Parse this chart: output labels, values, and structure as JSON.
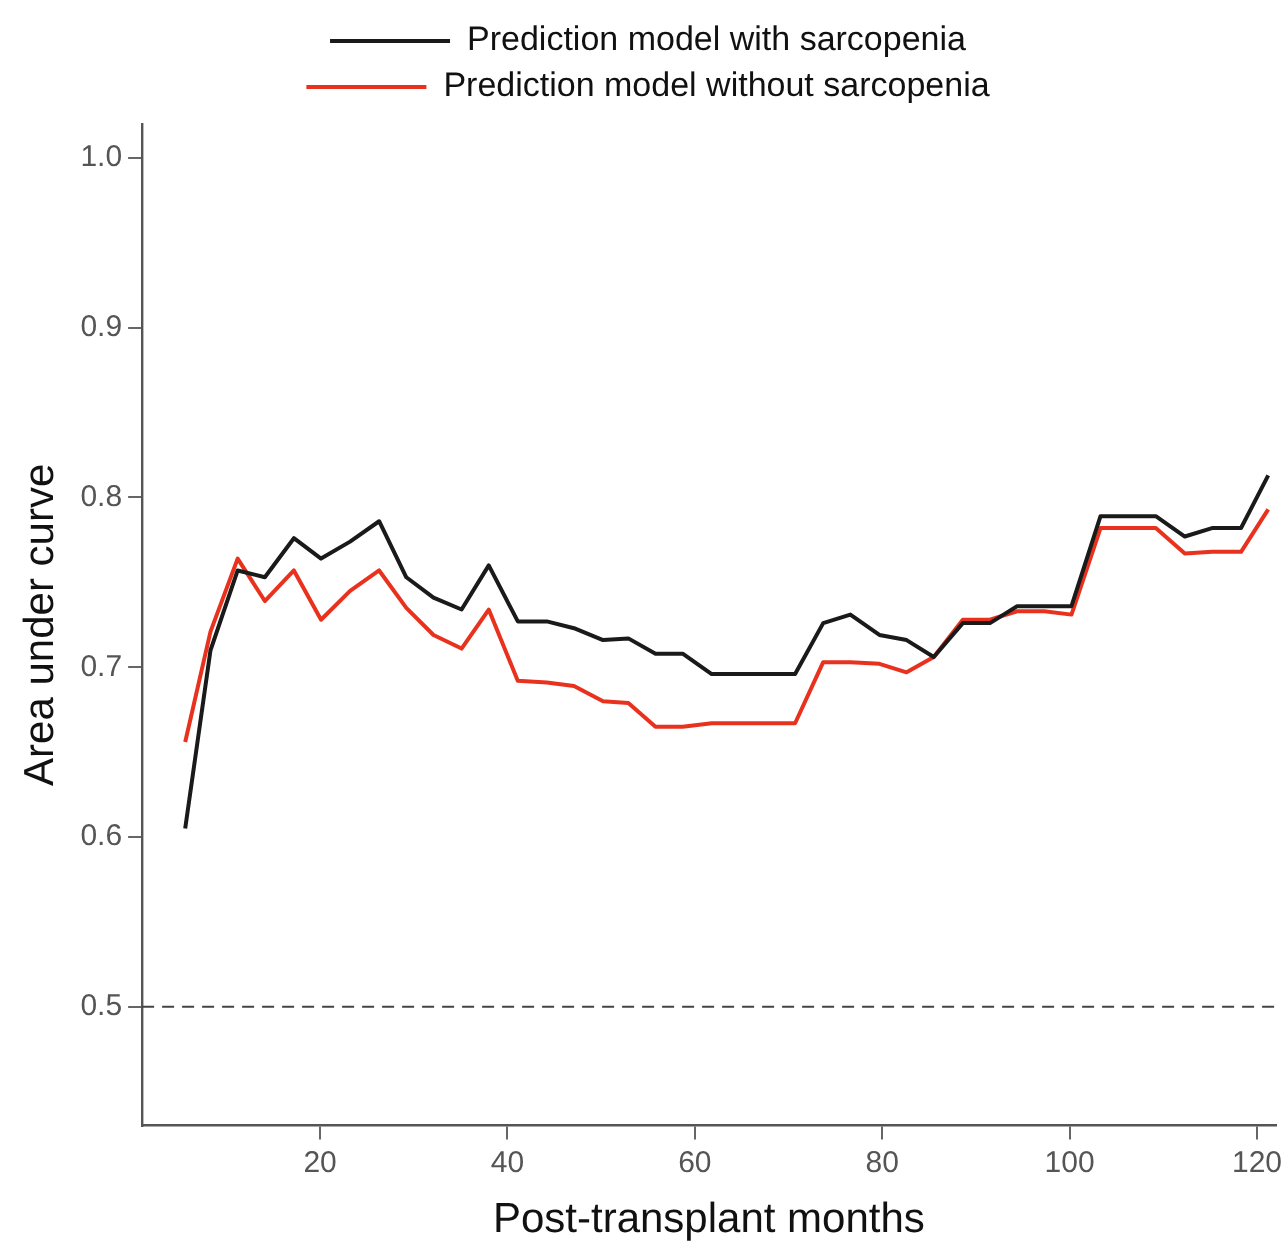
{
  "chart_data": {
    "type": "line",
    "xlabel": "Post-transplant months",
    "ylabel": "Area under curve",
    "x": [
      5.6,
      8.3,
      11.2,
      14.1,
      17.2,
      20.1,
      23.2,
      26.3,
      29.2,
      32.1,
      35.1,
      38.0,
      41.1,
      44.2,
      47.1,
      50.2,
      52.9,
      55.8,
      58.7,
      61.8,
      64.7,
      67.7,
      70.7,
      73.7,
      76.6,
      79.7,
      82.6,
      85.5,
      88.6,
      91.5,
      94.4,
      97.3,
      100.2,
      103.3,
      106.2,
      109.2,
      112.3,
      115.2,
      118.3,
      121.2
    ],
    "series": [
      {
        "name": "Prediction model with sarcopenia",
        "color": "#1a1a1a",
        "values": [
          0.605,
          0.71,
          0.757,
          0.753,
          0.776,
          0.764,
          0.774,
          0.786,
          0.753,
          0.741,
          0.734,
          0.76,
          0.727,
          0.727,
          0.723,
          0.716,
          0.717,
          0.708,
          0.708,
          0.696,
          0.696,
          0.696,
          0.696,
          0.726,
          0.731,
          0.719,
          0.716,
          0.706,
          0.726,
          0.726,
          0.736,
          0.736,
          0.736,
          0.789,
          0.789,
          0.789,
          0.777,
          0.782,
          0.782,
          0.813
        ]
      },
      {
        "name": "Prediction model without sarcopenia",
        "color": "#e8321e",
        "values": [
          0.656,
          0.721,
          0.764,
          0.739,
          0.757,
          0.728,
          0.745,
          0.757,
          0.735,
          0.719,
          0.711,
          0.734,
          0.692,
          0.691,
          0.689,
          0.68,
          0.679,
          0.665,
          0.665,
          0.667,
          0.667,
          0.667,
          0.667,
          0.703,
          0.703,
          0.702,
          0.697,
          0.706,
          0.728,
          0.728,
          0.733,
          0.733,
          0.731,
          0.782,
          0.782,
          0.782,
          0.767,
          0.768,
          0.768,
          0.793
        ]
      }
    ],
    "xlim": [
      1,
      122
    ],
    "xticks": [
      20,
      40,
      60,
      80,
      100,
      120
    ],
    "ylim": [
      0.43,
      1.02
    ],
    "yticks": [
      0.5,
      0.6,
      0.7,
      0.8,
      0.9,
      {
        "value": 1,
        "label": "1.0"
      }
    ],
    "ref_lines": [
      {
        "axis": "y",
        "value": 0.5,
        "color": "#444444",
        "line_style": "dashed"
      }
    ],
    "grid": false,
    "legend": "top",
    "marker": "none",
    "line_style": "solid"
  }
}
